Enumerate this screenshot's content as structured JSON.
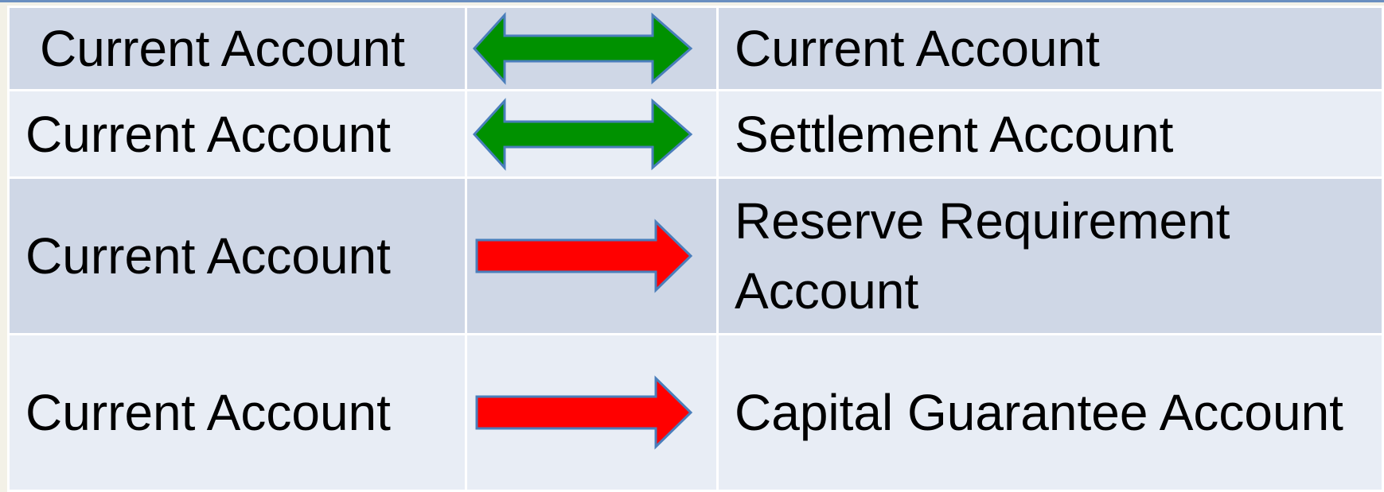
{
  "table": {
    "rows": [
      [
        "Current Account",
        "Current Account"
      ],
      [
        "Current Account",
        "Settlement Account"
      ],
      [
        "Current Account",
        "Reserve Requirement Account"
      ],
      [
        "Current Account",
        "Capital Guarantee Account"
      ]
    ]
  }
}
